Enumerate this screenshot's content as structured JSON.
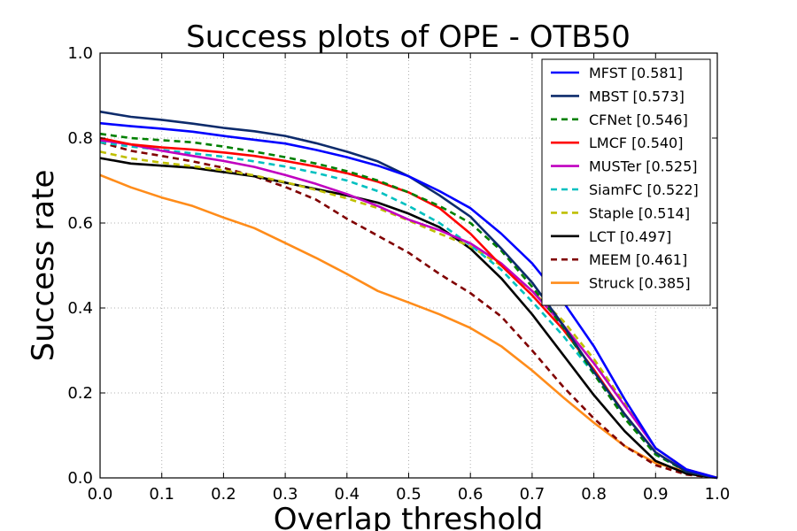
{
  "chart_data": {
    "type": "line",
    "title": "Success plots of OPE - OTB50",
    "xlabel": "Overlap threshold",
    "ylabel": "Success rate",
    "xlim": [
      0.0,
      1.0
    ],
    "ylim": [
      0.0,
      1.0
    ],
    "xticks": [
      "0.0",
      "0.1",
      "0.2",
      "0.3",
      "0.4",
      "0.5",
      "0.6",
      "0.7",
      "0.8",
      "0.9",
      "1.0"
    ],
    "yticks": [
      "0.0",
      "0.2",
      "0.4",
      "0.6",
      "0.8",
      "1.0"
    ],
    "grid": true,
    "legend_position": "top-right",
    "x": [
      0.0,
      0.05,
      0.1,
      0.15,
      0.2,
      0.25,
      0.3,
      0.35,
      0.4,
      0.45,
      0.5,
      0.55,
      0.6,
      0.65,
      0.7,
      0.75,
      0.8,
      0.85,
      0.9,
      0.95,
      1.0
    ],
    "series": [
      {
        "name": "MFST [0.581]",
        "color": "#0000ff",
        "dash": "solid",
        "values": [
          0.835,
          0.828,
          0.822,
          0.815,
          0.805,
          0.796,
          0.787,
          0.772,
          0.755,
          0.735,
          0.71,
          0.675,
          0.635,
          0.575,
          0.505,
          0.415,
          0.31,
          0.185,
          0.07,
          0.02,
          0.0
        ]
      },
      {
        "name": "MBST [0.573]",
        "color": "#0d2b6b",
        "dash": "solid",
        "values": [
          0.862,
          0.85,
          0.843,
          0.834,
          0.824,
          0.816,
          0.805,
          0.788,
          0.768,
          0.745,
          0.71,
          0.665,
          0.615,
          0.54,
          0.46,
          0.36,
          0.25,
          0.15,
          0.06,
          0.015,
          0.0
        ]
      },
      {
        "name": "CFNet [0.546]",
        "color": "#008000",
        "dash": "dashed",
        "values": [
          0.81,
          0.8,
          0.795,
          0.79,
          0.78,
          0.768,
          0.755,
          0.74,
          0.722,
          0.7,
          0.672,
          0.64,
          0.6,
          0.535,
          0.45,
          0.355,
          0.245,
          0.14,
          0.055,
          0.015,
          0.0
        ]
      },
      {
        "name": "LMCF [0.540]",
        "color": "#ff0000",
        "dash": "solid",
        "values": [
          0.8,
          0.785,
          0.778,
          0.773,
          0.766,
          0.758,
          0.746,
          0.733,
          0.717,
          0.697,
          0.672,
          0.635,
          0.575,
          0.5,
          0.43,
          0.35,
          0.255,
          0.15,
          0.06,
          0.015,
          0.0
        ]
      },
      {
        "name": "MUSTer [0.525]",
        "color": "#c000c0",
        "dash": "solid",
        "values": [
          0.795,
          0.785,
          0.77,
          0.758,
          0.746,
          0.732,
          0.713,
          0.692,
          0.668,
          0.64,
          0.608,
          0.583,
          0.552,
          0.505,
          0.44,
          0.36,
          0.27,
          0.17,
          0.07,
          0.02,
          0.0
        ]
      },
      {
        "name": "SiamFC [0.522]",
        "color": "#00c0c0",
        "dash": "dashed",
        "values": [
          0.79,
          0.78,
          0.772,
          0.764,
          0.756,
          0.745,
          0.733,
          0.718,
          0.7,
          0.675,
          0.64,
          0.6,
          0.548,
          0.49,
          0.415,
          0.335,
          0.245,
          0.145,
          0.055,
          0.015,
          0.0
        ]
      },
      {
        "name": "Staple [0.514]",
        "color": "#bfbf00",
        "dash": "dashed",
        "values": [
          0.768,
          0.752,
          0.742,
          0.734,
          0.724,
          0.712,
          0.696,
          0.678,
          0.658,
          0.635,
          0.606,
          0.575,
          0.545,
          0.5,
          0.44,
          0.37,
          0.28,
          0.175,
          0.07,
          0.02,
          0.0
        ]
      },
      {
        "name": "LCT [0.497]",
        "color": "#000000",
        "dash": "solid",
        "values": [
          0.753,
          0.74,
          0.735,
          0.73,
          0.72,
          0.71,
          0.695,
          0.68,
          0.665,
          0.648,
          0.622,
          0.59,
          0.54,
          0.47,
          0.385,
          0.29,
          0.195,
          0.11,
          0.04,
          0.01,
          0.0
        ]
      },
      {
        "name": "MEEM [0.461]",
        "color": "#800000",
        "dash": "dashed",
        "values": [
          0.79,
          0.77,
          0.758,
          0.745,
          0.73,
          0.71,
          0.685,
          0.655,
          0.61,
          0.57,
          0.53,
          0.48,
          0.435,
          0.38,
          0.3,
          0.215,
          0.14,
          0.075,
          0.03,
          0.008,
          0.0
        ]
      },
      {
        "name": "Struck [0.385]",
        "color": "#ff8c1a",
        "dash": "solid",
        "values": [
          0.713,
          0.684,
          0.66,
          0.64,
          0.613,
          0.588,
          0.553,
          0.518,
          0.48,
          0.44,
          0.413,
          0.385,
          0.353,
          0.31,
          0.253,
          0.19,
          0.13,
          0.075,
          0.035,
          0.015,
          0.0
        ]
      }
    ]
  }
}
